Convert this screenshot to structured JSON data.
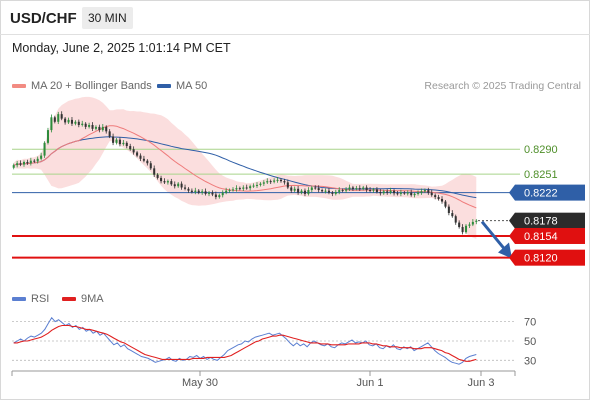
{
  "header": {
    "symbol": "USD/CHF",
    "timeframe": "30 MIN",
    "datetime": "Monday, June 2, 2025 1:01:14 PM CET"
  },
  "legend": {
    "ma20": {
      "label": "MA 20 + Bollinger Bands",
      "color": "#f28b82"
    },
    "ma50": {
      "label": "MA 50",
      "color": "#2f5fa7"
    },
    "credit": "Research © 2025 Trading Central"
  },
  "rsi_legend": {
    "rsi": {
      "label": "RSI",
      "color": "#5b7fd1"
    },
    "ma9": {
      "label": "9MA",
      "color": "#e02020"
    }
  },
  "chart_data": {
    "type": "candlestick",
    "ylim": [
      0.8085,
      0.8375
    ],
    "x_ticks": [
      "May 30",
      "Jun 1",
      "Jun 3"
    ],
    "levels": [
      {
        "value": 0.829,
        "label": "0.8290",
        "kind": "resistance"
      },
      {
        "value": 0.8251,
        "label": "0.8251",
        "kind": "resistance"
      },
      {
        "value": 0.8222,
        "label": "0.8222",
        "kind": "ma50"
      },
      {
        "value": 0.8178,
        "label": "0.8178",
        "kind": "current"
      },
      {
        "value": 0.8154,
        "label": "0.8154",
        "kind": "support"
      },
      {
        "value": 0.812,
        "label": "0.8120",
        "kind": "target"
      }
    ],
    "close": [
      0.8265,
      0.8268,
      0.8266,
      0.827,
      0.8268,
      0.8272,
      0.8271,
      0.8275,
      0.828,
      0.83,
      0.832,
      0.834,
      0.8333,
      0.8345,
      0.8338,
      0.8332,
      0.8336,
      0.833,
      0.8333,
      0.8328,
      0.833,
      0.8325,
      0.8328,
      0.8322,
      0.8325,
      0.832,
      0.8325,
      0.8318,
      0.831,
      0.83,
      0.8305,
      0.8298,
      0.83,
      0.8295,
      0.829,
      0.8285,
      0.828,
      0.8275,
      0.8272,
      0.8268,
      0.826,
      0.825,
      0.8245,
      0.824,
      0.8238,
      0.824,
      0.8235,
      0.8232,
      0.8236,
      0.823,
      0.8228,
      0.8225,
      0.8223,
      0.8225,
      0.8222,
      0.8224,
      0.822,
      0.8222,
      0.8219,
      0.8215,
      0.8218,
      0.8222,
      0.8225,
      0.8226,
      0.8227,
      0.8229,
      0.8228,
      0.823,
      0.8229,
      0.8232,
      0.8233,
      0.8234,
      0.8236,
      0.8238,
      0.824,
      0.8239,
      0.8241,
      0.8242,
      0.824,
      0.8238,
      0.823,
      0.8225,
      0.8228,
      0.8222,
      0.8225,
      0.822,
      0.8226,
      0.823,
      0.8229,
      0.8226,
      0.8224,
      0.8225,
      0.8222,
      0.822,
      0.8223,
      0.8226,
      0.8225,
      0.8227,
      0.823,
      0.8228,
      0.8229,
      0.8228,
      0.823,
      0.8226,
      0.8225,
      0.8227,
      0.8223,
      0.8221,
      0.8224,
      0.8222,
      0.8225,
      0.8221,
      0.822,
      0.8222,
      0.8221,
      0.8222,
      0.8218,
      0.822,
      0.8222,
      0.8224,
      0.8226,
      0.8222,
      0.8218,
      0.8215,
      0.8212,
      0.8208,
      0.82,
      0.819,
      0.8185,
      0.8175,
      0.8168,
      0.816,
      0.817,
      0.8172,
      0.8176,
      0.8178
    ],
    "rsi": {
      "ticks": [
        30,
        50,
        70
      ],
      "ylim": [
        20,
        82
      ],
      "rsi": [
        48,
        50,
        52,
        50,
        53,
        55,
        54,
        56,
        58,
        62,
        68,
        74,
        70,
        72,
        69,
        66,
        68,
        64,
        66,
        62,
        64,
        60,
        62,
        58,
        60,
        56,
        58,
        54,
        50,
        46,
        48,
        44,
        46,
        42,
        40,
        38,
        36,
        34,
        33,
        32,
        30,
        28,
        29,
        30,
        31,
        33,
        30,
        29,
        32,
        30,
        31,
        34,
        33,
        35,
        32,
        34,
        31,
        33,
        31,
        30,
        33,
        36,
        40,
        42,
        44,
        46,
        47,
        50,
        49,
        52,
        54,
        55,
        56,
        57,
        58,
        56,
        57,
        58,
        55,
        52,
        48,
        45,
        48,
        45,
        47,
        44,
        48,
        50,
        48,
        46,
        45,
        47,
        44,
        43,
        46,
        48,
        47,
        49,
        51,
        48,
        49,
        48,
        50,
        46,
        45,
        47,
        43,
        42,
        45,
        43,
        46,
        42,
        41,
        44,
        42,
        44,
        40,
        42,
        44,
        46,
        48,
        44,
        40,
        37,
        35,
        33,
        30,
        28,
        27,
        26,
        28,
        32,
        34,
        35,
        36
      ],
      "ma9": [
        48,
        48,
        49,
        50,
        50,
        51,
        52,
        53,
        54,
        56,
        58,
        61,
        63,
        65,
        66,
        66,
        66,
        65,
        65,
        64,
        63,
        62,
        62,
        61,
        60,
        59,
        58,
        57,
        55,
        53,
        51,
        49,
        48,
        46,
        44,
        42,
        40,
        38,
        36,
        35,
        34,
        33,
        32,
        31,
        31,
        31,
        31,
        31,
        31,
        31,
        31,
        31,
        32,
        32,
        32,
        32,
        33,
        33,
        33,
        33,
        33,
        33,
        34,
        35,
        37,
        39,
        41,
        43,
        45,
        47,
        49,
        50,
        52,
        53,
        54,
        55,
        55,
        56,
        56,
        55,
        54,
        53,
        52,
        51,
        50,
        49,
        48,
        48,
        48,
        47,
        47,
        47,
        46,
        46,
        46,
        46,
        46,
        47,
        47,
        47,
        47,
        48,
        48,
        48,
        47,
        47,
        46,
        45,
        45,
        44,
        44,
        44,
        43,
        43,
        43,
        43,
        42,
        42,
        42,
        43,
        43,
        43,
        42,
        41,
        40,
        38,
        37,
        35,
        33,
        31,
        30,
        29,
        29,
        30,
        31
      ]
    }
  }
}
